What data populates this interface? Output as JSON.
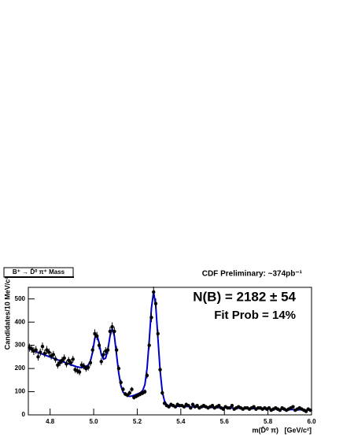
{
  "chart_data": {
    "type": "scatter",
    "title": "B⁺ → D̄⁰ π⁺ Mass",
    "subtitle": "CDF Preliminary: ~374pb⁻¹",
    "annotations": [
      "N(B) = 2182 ± 54",
      "Fit Prob = 14%"
    ],
    "x_label": "m(D̄⁰ π)   [GeV/c²]",
    "y_label": "Candidates/10 MeV/c²",
    "xlim": [
      4.7,
      6.0
    ],
    "ylim": [
      0,
      550
    ],
    "xticks": [
      4.8,
      {
        "value": 5,
        "label": "5.0"
      },
      5.2,
      5.4,
      5.6,
      5.8,
      {
        "value": 6,
        "label": "6.0"
      }
    ],
    "yticks": [
      0,
      100,
      200,
      300,
      400,
      500
    ],
    "x": [
      4.705,
      4.715,
      4.725,
      4.735,
      4.745,
      4.755,
      4.765,
      4.775,
      4.785,
      4.795,
      4.805,
      4.815,
      4.825,
      4.835,
      4.845,
      4.855,
      4.865,
      4.875,
      4.885,
      4.895,
      4.905,
      4.915,
      4.925,
      4.935,
      4.945,
      4.955,
      4.965,
      4.975,
      4.985,
      4.995,
      5.005,
      5.015,
      5.025,
      5.035,
      5.045,
      5.055,
      5.065,
      5.075,
      5.085,
      5.095,
      5.105,
      5.115,
      5.125,
      5.135,
      5.145,
      5.155,
      5.165,
      5.175,
      5.185,
      5.195,
      5.205,
      5.215,
      5.225,
      5.235,
      5.245,
      5.255,
      5.265,
      5.275,
      5.285,
      5.295,
      5.305,
      5.315,
      5.325,
      5.335,
      5.345,
      5.355,
      5.365,
      5.375,
      5.385,
      5.395,
      5.405,
      5.415,
      5.425,
      5.435,
      5.445,
      5.455,
      5.465,
      5.475,
      5.485,
      5.495,
      5.505,
      5.515,
      5.525,
      5.535,
      5.545,
      5.555,
      5.565,
      5.575,
      5.585,
      5.595,
      5.605,
      5.615,
      5.625,
      5.635,
      5.645,
      5.655,
      5.665,
      5.675,
      5.685,
      5.695,
      5.705,
      5.715,
      5.725,
      5.735,
      5.745,
      5.755,
      5.765,
      5.775,
      5.785,
      5.795,
      5.805,
      5.815,
      5.825,
      5.835,
      5.845,
      5.855,
      5.865,
      5.875,
      5.885,
      5.895,
      5.905,
      5.915,
      5.925,
      5.935,
      5.945,
      5.955,
      5.965,
      5.975,
      5.985,
      5.995
    ],
    "series": [
      {
        "type": "scatter",
        "color": "#000000",
        "values": [
          290,
          285,
          275,
          280,
          250,
          270,
          295,
          265,
          280,
          270,
          255,
          260,
          240,
          215,
          225,
          235,
          245,
          220,
          235,
          225,
          240,
          195,
          190,
          185,
          215,
          210,
          200,
          205,
          225,
          280,
          350,
          340,
          300,
          230,
          260,
          275,
          280,
          360,
          380,
          360,
          280,
          200,
          140,
          110,
          90,
          85,
          95,
          110,
          75,
          80,
          85,
          90,
          95,
          100,
          170,
          300,
          420,
          530,
          480,
          350,
          195,
          95,
          50,
          40,
          35,
          45,
          40,
          35,
          45,
          40,
          40,
          35,
          45,
          40,
          30,
          45,
          35,
          40,
          30,
          35,
          40,
          35,
          30,
          35,
          40,
          30,
          35,
          40,
          30,
          25,
          35,
          30,
          30,
          40,
          25,
          30,
          35,
          30,
          25,
          30,
          30,
          25,
          30,
          35,
          25,
          30,
          30,
          25,
          30,
          25,
          30,
          20,
          25,
          30,
          25,
          20,
          30,
          25,
          20,
          25,
          30,
          35,
          20,
          25,
          30,
          25,
          20,
          15,
          25,
          20
        ],
        "errors": [
          17,
          17,
          17,
          17,
          16,
          16,
          17,
          16,
          17,
          16,
          16,
          16,
          15,
          15,
          15,
          15,
          16,
          15,
          15,
          15,
          15,
          14,
          14,
          14,
          15,
          14,
          14,
          14,
          15,
          17,
          19,
          18,
          17,
          15,
          16,
          17,
          17,
          19,
          19,
          19,
          17,
          14,
          12,
          10,
          9,
          9,
          10,
          10,
          9,
          9,
          9,
          9,
          10,
          10,
          13,
          17,
          20,
          23,
          22,
          19,
          14,
          10,
          7,
          6,
          6,
          7,
          6,
          6,
          7,
          6,
          6,
          6,
          7,
          6,
          5,
          7,
          6,
          6,
          5,
          6,
          6,
          6,
          5,
          6,
          6,
          5,
          6,
          6,
          5,
          5,
          6,
          5,
          5,
          6,
          5,
          5,
          6,
          5,
          5,
          5,
          5,
          5,
          5,
          6,
          5,
          5,
          5,
          5,
          5,
          5,
          5,
          4,
          5,
          5,
          5,
          4,
          5,
          5,
          4,
          5,
          5,
          6,
          4,
          5,
          5,
          5,
          4,
          4,
          5,
          4
        ]
      },
      {
        "type": "line",
        "color": "#0000cc",
        "values": [
          285,
          281,
          277,
          273,
          269,
          265,
          262,
          258,
          255,
          251,
          248,
          244,
          241,
          237,
          234,
          230,
          227,
          223,
          220,
          216,
          213,
          210,
          207,
          205,
          204,
          205,
          208,
          215,
          232,
          270,
          330,
          345,
          310,
          260,
          240,
          245,
          280,
          340,
          372,
          340,
          260,
          180,
          125,
          98,
          87,
          82,
          80,
          81,
          84,
          88,
          92,
          96,
          105,
          130,
          200,
          320,
          460,
          530,
          470,
          330,
          190,
          100,
          60,
          45,
          40,
          39,
          38,
          38,
          37,
          37,
          37,
          36,
          36,
          36,
          35,
          35,
          35,
          34,
          34,
          34,
          34,
          33,
          33,
          33,
          32,
          32,
          32,
          31,
          31,
          31,
          31,
          30,
          30,
          30,
          29,
          29,
          29,
          29,
          28,
          28,
          28,
          28,
          27,
          27,
          27,
          27,
          26,
          26,
          26,
          26,
          25,
          25,
          25,
          25,
          24,
          24,
          24,
          24,
          23,
          23,
          23,
          23,
          22,
          22,
          22,
          22,
          21,
          21,
          21,
          21
        ]
      }
    ]
  }
}
